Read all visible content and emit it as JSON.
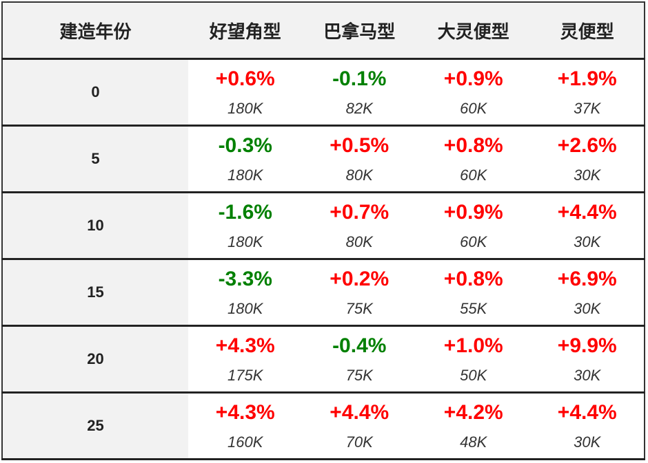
{
  "header": [
    "建造年份",
    "好望角型",
    "巴拿马型",
    "大灵便型",
    "灵便型"
  ],
  "rows": [
    {
      "year": "0",
      "cells": [
        {
          "change": "+0.6%",
          "price": "180K"
        },
        {
          "change": "-0.1%",
          "price": "82K"
        },
        {
          "change": "+0.9%",
          "price": "60K"
        },
        {
          "change": "+1.9%",
          "price": "37K"
        }
      ]
    },
    {
      "year": "5",
      "cells": [
        {
          "change": "-0.3%",
          "price": "180K"
        },
        {
          "change": "+0.5%",
          "price": "80K"
        },
        {
          "change": "+0.8%",
          "price": "60K"
        },
        {
          "change": "+2.6%",
          "price": "30K"
        }
      ]
    },
    {
      "year": "10",
      "cells": [
        {
          "change": "-1.6%",
          "price": "180K"
        },
        {
          "change": "+0.7%",
          "price": "80K"
        },
        {
          "change": "+0.9%",
          "price": "60K"
        },
        {
          "change": "+4.4%",
          "price": "30K"
        }
      ]
    },
    {
      "year": "15",
      "cells": [
        {
          "change": "-3.3%",
          "price": "180K"
        },
        {
          "change": "+0.2%",
          "price": "75K"
        },
        {
          "change": "+0.8%",
          "price": "55K"
        },
        {
          "change": "+6.9%",
          "price": "30K"
        }
      ]
    },
    {
      "year": "20",
      "cells": [
        {
          "change": "+4.3%",
          "price": "175K"
        },
        {
          "change": "-0.4%",
          "price": "75K"
        },
        {
          "change": "+1.0%",
          "price": "50K"
        },
        {
          "change": "+9.9%",
          "price": "30K"
        }
      ]
    },
    {
      "year": "25",
      "cells": [
        {
          "change": "+4.3%",
          "price": "160K"
        },
        {
          "change": "+4.4%",
          "price": "70K"
        },
        {
          "change": "+4.2%",
          "price": "48K"
        },
        {
          "change": "+4.4%",
          "price": "30K"
        }
      ]
    }
  ]
}
